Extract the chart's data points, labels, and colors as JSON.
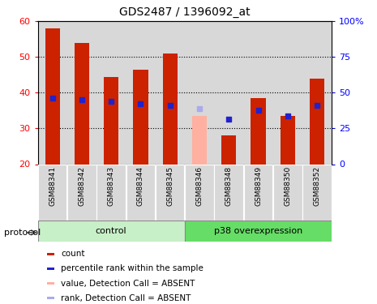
{
  "title": "GDS2487 / 1396092_at",
  "samples": [
    "GSM88341",
    "GSM88342",
    "GSM88343",
    "GSM88344",
    "GSM88345",
    "GSM88346",
    "GSM88348",
    "GSM88349",
    "GSM88350",
    "GSM88352"
  ],
  "count_values": [
    58.0,
    54.0,
    44.5,
    46.5,
    51.0,
    null,
    28.0,
    38.5,
    33.5,
    44.0
  ],
  "count_absent": [
    null,
    null,
    null,
    null,
    null,
    33.5,
    null,
    null,
    null,
    null
  ],
  "rank_values": [
    38.5,
    38.0,
    37.5,
    37.0,
    36.5,
    null,
    32.5,
    35.0,
    33.5,
    36.5
  ],
  "rank_absent": [
    null,
    null,
    null,
    null,
    null,
    35.5,
    null,
    null,
    null,
    null
  ],
  "ylim": [
    20,
    60
  ],
  "y2lim": [
    0,
    100
  ],
  "yticks": [
    20,
    30,
    40,
    50,
    60
  ],
  "y2ticks": [
    0,
    25,
    50,
    75,
    100
  ],
  "y2ticklabels": [
    "0",
    "25",
    "50",
    "75",
    "100%"
  ],
  "control_indices": [
    0,
    1,
    2,
    3,
    4
  ],
  "overexp_indices": [
    5,
    6,
    7,
    8,
    9
  ],
  "control_label": "control",
  "overexp_label": "p38 overexpression",
  "protocol_label": "protocol",
  "bar_color_present": "#cc2200",
  "bar_color_absent": "#ffb0a0",
  "rank_color_present": "#2222cc",
  "rank_color_absent": "#aaaaee",
  "col_bg_color": "#d8d8d8",
  "control_bg": "#c8f0c8",
  "overexp_bg": "#66dd66",
  "bar_width": 0.5,
  "legend_items": [
    {
      "color": "#cc2200",
      "label": "count"
    },
    {
      "color": "#2222cc",
      "label": "percentile rank within the sample"
    },
    {
      "color": "#ffb0a0",
      "label": "value, Detection Call = ABSENT"
    },
    {
      "color": "#aaaaee",
      "label": "rank, Detection Call = ABSENT"
    }
  ]
}
